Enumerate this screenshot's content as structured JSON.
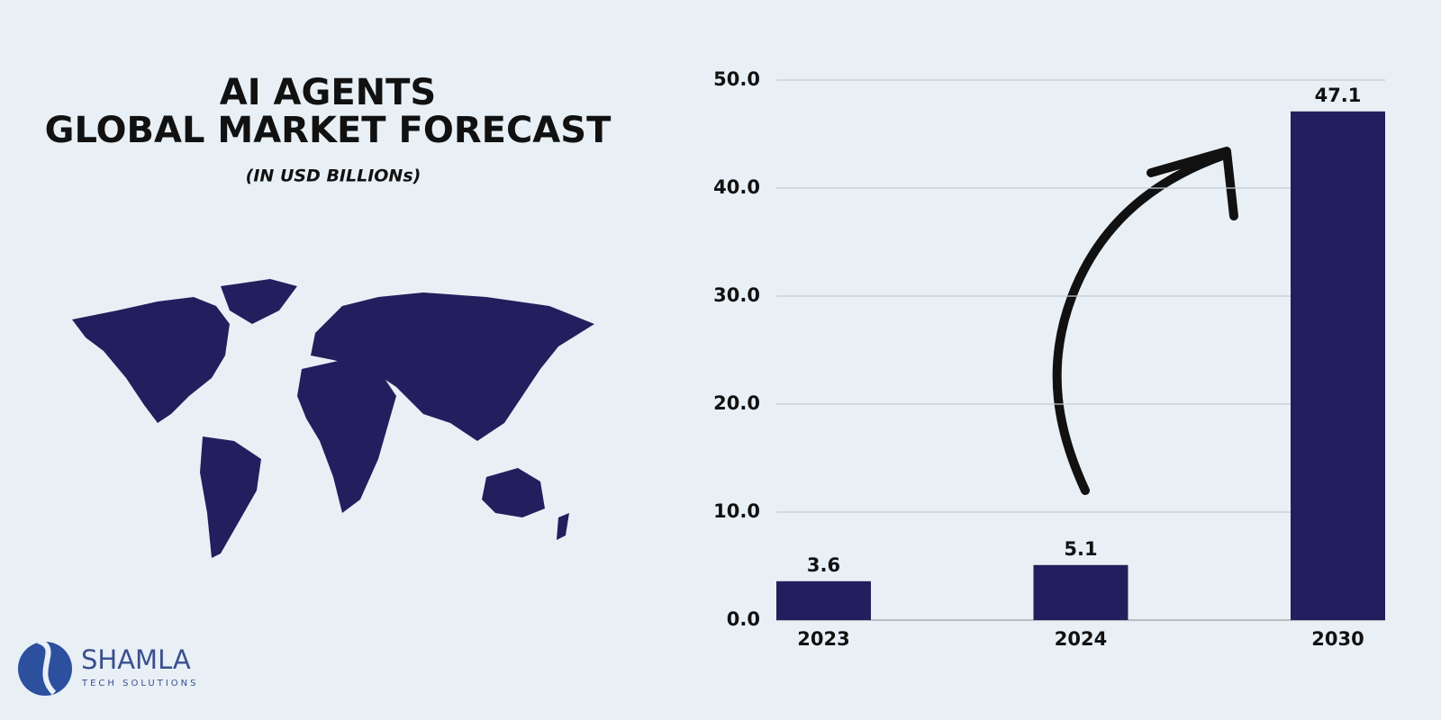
{
  "chart_data": {
    "type": "bar",
    "title": [
      "AI AGENTS",
      "GLOBAL MARKET FORECAST"
    ],
    "subtitle": "(IN USD BILLIONs)",
    "categories": [
      "2023",
      "2024",
      "2030"
    ],
    "values": [
      3.6,
      5.1,
      47.1
    ],
    "color": "#221f5e",
    "ylim": [
      0,
      50
    ],
    "yticks": [
      {
        "value": 0,
        "label": "0.0"
      },
      {
        "value": 10,
        "label": "10.0"
      },
      {
        "value": 20,
        "label": "20.0"
      },
      {
        "value": 30,
        "label": "30.0"
      },
      {
        "value": 40,
        "label": "40.0"
      },
      {
        "value": 50,
        "label": "50.0"
      }
    ],
    "grid": true
  },
  "logo": {
    "name": "SHAMLA",
    "tagline": "TECH SOLUTIONS"
  }
}
